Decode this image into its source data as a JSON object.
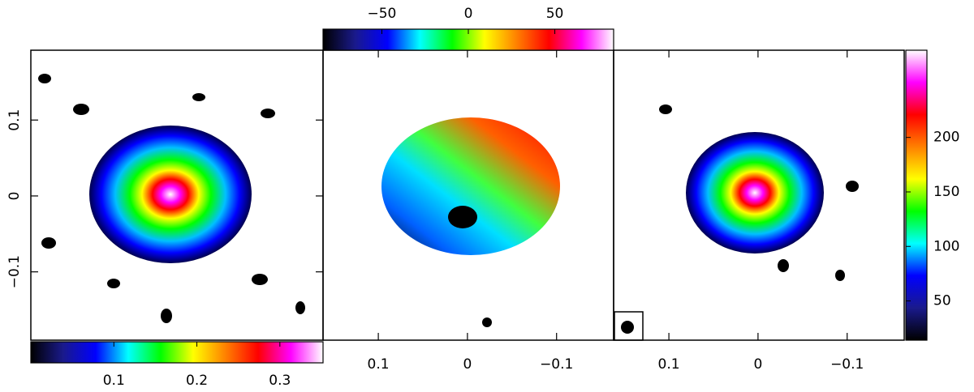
{
  "chart_data": [
    {
      "type": "image",
      "xlim": [
        0.162,
        -0.164
      ],
      "ylim": [
        -0.19,
        0.192
      ],
      "yticks": [
        {
          "value": 0.1,
          "label": "0.1"
        },
        0,
        {
          "value": -0.1,
          "label": "−0.1"
        }
      ],
      "colorbar": {
        "orient": "horizontal",
        "lim": [
          0,
          0.352
        ],
        "ticks": [
          0.1,
          0.2,
          0.3
        ],
        "colormap": [
          "#000000",
          "#1a1a8c",
          "#0000ff",
          "#00ffff",
          "#00ff00",
          "#ffff00",
          "#ff8000",
          "#ff0000",
          "#ff00ff",
          "#ffffff"
        ]
      }
    },
    {
      "type": "image",
      "xlim": [
        0.162,
        -0.164
      ],
      "ylim": [
        -0.19,
        0.192
      ],
      "xticks": [
        0.1,
        0,
        {
          "value": -0.1,
          "label": "−0.1"
        }
      ],
      "colorbar": {
        "orient": "horizontal",
        "lim": [
          -84,
          84
        ],
        "ticks": [
          {
            "value": -50,
            "label": "−50"
          },
          0,
          50
        ],
        "colormap": [
          "#000000",
          "#1a1a8c",
          "#0000ff",
          "#00ffff",
          "#00ff00",
          "#ffff00",
          "#ff8000",
          "#ff0000",
          "#ff00ff",
          "#ffffff"
        ]
      }
    },
    {
      "type": "image",
      "xlim": [
        0.162,
        -0.164
      ],
      "ylim": [
        -0.19,
        0.192
      ],
      "xticks": [
        0.1,
        0,
        {
          "value": -0.1,
          "label": "−0.1"
        }
      ],
      "colorbar": {
        "orient": "vertical",
        "lim": [
          14,
          280
        ],
        "ticks": [
          50,
          100,
          150,
          200
        ],
        "colormap": [
          "#000000",
          "#1a1a8c",
          "#0000ff",
          "#00ffff",
          "#00ff00",
          "#ffff00",
          "#ff8000",
          "#ff0000",
          "#ff00ff",
          "#ffffff"
        ]
      }
    }
  ]
}
